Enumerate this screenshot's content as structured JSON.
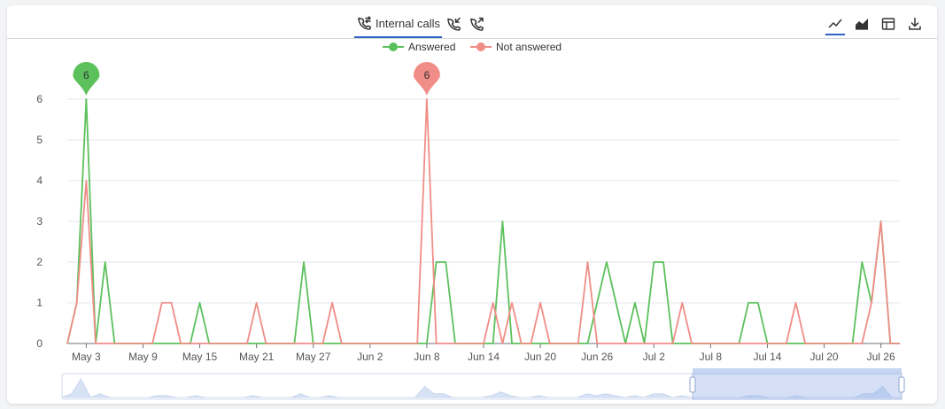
{
  "tabs": [
    {
      "label": "Internal calls",
      "icon": "phone-transfer-icon",
      "active": true
    },
    {
      "label": "",
      "icon": "phone-incoming-icon",
      "active": false
    },
    {
      "label": "",
      "icon": "phone-outgoing-icon",
      "active": false
    }
  ],
  "toolbar": [
    {
      "name": "line-chart-icon",
      "active": true
    },
    {
      "name": "area-chart-icon",
      "active": false
    },
    {
      "name": "table-view-icon",
      "active": false
    },
    {
      "name": "download-icon",
      "active": false
    }
  ],
  "chart_data": {
    "type": "line",
    "title": "",
    "xlabel": "",
    "ylabel": "",
    "ylim": [
      0,
      6
    ],
    "yticks": [
      "0",
      "1",
      "2",
      "3",
      "4",
      "5",
      "6"
    ],
    "xtick_labels": [
      "May 3",
      "May 9",
      "May 15",
      "May 21",
      "May 27",
      "Jun 2",
      "Jun 8",
      "Jun 14",
      "Jun 20",
      "Jun 26",
      "Jul 2",
      "Jul 8",
      "Jul 14",
      "Jul 20",
      "Jul 26"
    ],
    "grid": true,
    "legend": "top-center",
    "x_start": "May 1",
    "x_end": "Jul 29",
    "series": [
      {
        "name": "Answered",
        "color": "#5cc15c",
        "max_marker": {
          "x": "May 3",
          "value": 6
        },
        "values": [
          0,
          1,
          6,
          0,
          2,
          0,
          0,
          0,
          0,
          0,
          0,
          0,
          0,
          0,
          1,
          0,
          0,
          0,
          0,
          0,
          0,
          0,
          0,
          0,
          0,
          2,
          0,
          0,
          0,
          0,
          0,
          0,
          0,
          0,
          0,
          0,
          0,
          0,
          0,
          2,
          2,
          0,
          0,
          0,
          0,
          0,
          3,
          0,
          0,
          0,
          0,
          0,
          0,
          0,
          0,
          0,
          1,
          2,
          1,
          0,
          1,
          0,
          2,
          2,
          0,
          0,
          0,
          0,
          0,
          0,
          0,
          0,
          1,
          1,
          0,
          0,
          0,
          0,
          0,
          0,
          0,
          0,
          0,
          0,
          2,
          1,
          3,
          0,
          0
        ]
      },
      {
        "name": "Not answered",
        "color": "#f08d87",
        "max_marker": {
          "x": "Jun 8",
          "value": 6
        },
        "values": [
          0,
          1,
          4,
          0,
          0,
          0,
          0,
          0,
          0,
          0,
          1,
          1,
          0,
          0,
          0,
          0,
          0,
          0,
          0,
          0,
          1,
          0,
          0,
          0,
          0,
          0,
          0,
          0,
          1,
          0,
          0,
          0,
          0,
          0,
          0,
          0,
          0,
          0,
          6,
          0,
          0,
          0,
          0,
          0,
          0,
          1,
          0,
          1,
          0,
          0,
          1,
          0,
          0,
          0,
          0,
          2,
          0,
          0,
          0,
          0,
          0,
          0,
          0,
          0,
          0,
          1,
          0,
          0,
          0,
          0,
          0,
          0,
          0,
          0,
          0,
          0,
          0,
          1,
          0,
          0,
          0,
          0,
          0,
          0,
          0,
          1,
          3,
          0,
          0
        ]
      }
    ]
  }
}
